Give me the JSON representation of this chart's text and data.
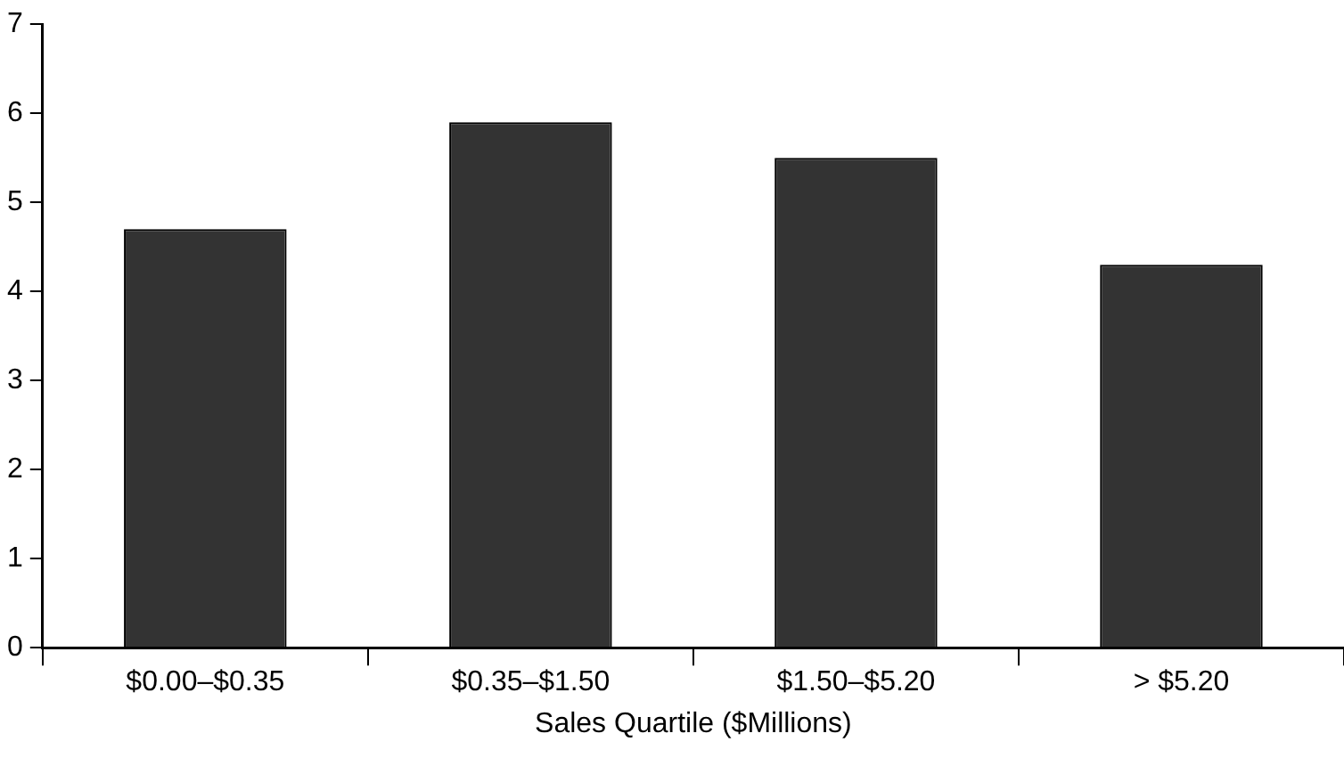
{
  "chart_data": {
    "type": "bar",
    "xlabel": "Sales Quartile ($Millions)",
    "categories": [
      "$0.00–$0.35",
      "$0.35–$1.50",
      "$1.50–$5.20",
      "> $5.20"
    ],
    "values": [
      4.7,
      5.9,
      5.5,
      4.3
    ],
    "color": "#333333",
    "ylim": [
      0,
      7
    ],
    "yticks": [
      0,
      1,
      2,
      3,
      4,
      5,
      6,
      7
    ],
    "grid": false,
    "legend": false
  }
}
